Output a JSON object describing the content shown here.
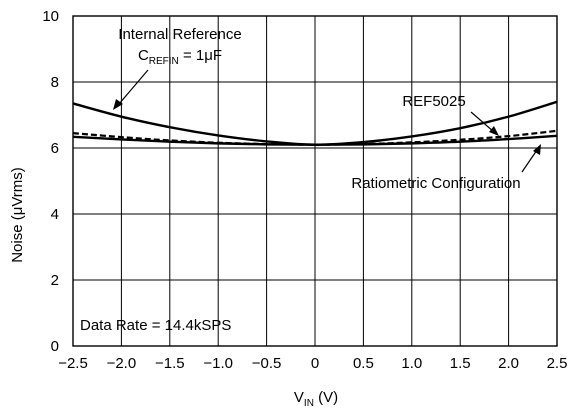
{
  "chart_data": {
    "type": "line",
    "xlabel": {
      "main": "V",
      "sub": "IN",
      "rest": " (V)"
    },
    "ylabel": {
      "prefix": "Noise (",
      "mu": "μ",
      "rest": "Vrms)"
    },
    "xlim": [
      -2.5,
      2.5
    ],
    "ylim": [
      0,
      10
    ],
    "x_ticks": [
      -2.5,
      -2.0,
      -1.5,
      -1.0,
      -0.5,
      0,
      0.5,
      1.0,
      1.5,
      2.0,
      2.5
    ],
    "x_tick_labels": [
      "−2.5",
      "−2.0",
      "−1.5",
      "−1.0",
      "−0.5",
      "0",
      "0.5",
      "1.0",
      "1.5",
      "2.0",
      "2.5"
    ],
    "y_ticks": [
      0,
      2,
      4,
      6,
      8,
      10
    ],
    "y_tick_labels": [
      "0",
      "2",
      "4",
      "6",
      "8",
      "10"
    ],
    "grid": true,
    "series": [
      {
        "name": "Internal Reference",
        "style": "solid",
        "x": [
          -2.5,
          -2.0,
          -1.5,
          -1.0,
          -0.5,
          0,
          0.5,
          1.0,
          1.5,
          2.0,
          2.5
        ],
        "y": [
          7.35,
          6.95,
          6.63,
          6.38,
          6.2,
          6.1,
          6.18,
          6.35,
          6.6,
          6.95,
          7.4
        ]
      },
      {
        "name": "REF5025",
        "style": "dashed",
        "x": [
          -2.5,
          -2.0,
          -1.5,
          -1.0,
          -0.5,
          0,
          0.5,
          1.0,
          1.5,
          2.0,
          2.5
        ],
        "y": [
          6.45,
          6.33,
          6.23,
          6.16,
          6.12,
          6.1,
          6.12,
          6.17,
          6.25,
          6.36,
          6.52
        ]
      },
      {
        "name": "Ratiometric Configuration",
        "style": "solid",
        "x": [
          -2.5,
          -2.0,
          -1.5,
          -1.0,
          -0.5,
          0,
          0.5,
          1.0,
          1.5,
          2.0,
          2.5
        ],
        "y": [
          6.34,
          6.26,
          6.19,
          6.14,
          6.11,
          6.1,
          6.11,
          6.14,
          6.19,
          6.27,
          6.37
        ]
      }
    ],
    "annotations": {
      "internal_ref_line1": "Internal Reference",
      "cref_main": "C",
      "cref_sub": "REFIN",
      "cref_rest": " = 1",
      "cref_mu": "μ",
      "cref_unit": "F",
      "ref5025": "REF5025",
      "ratiometric": "Ratiometric Configuration",
      "data_rate": "Data Rate = 14.4kSPS"
    }
  }
}
